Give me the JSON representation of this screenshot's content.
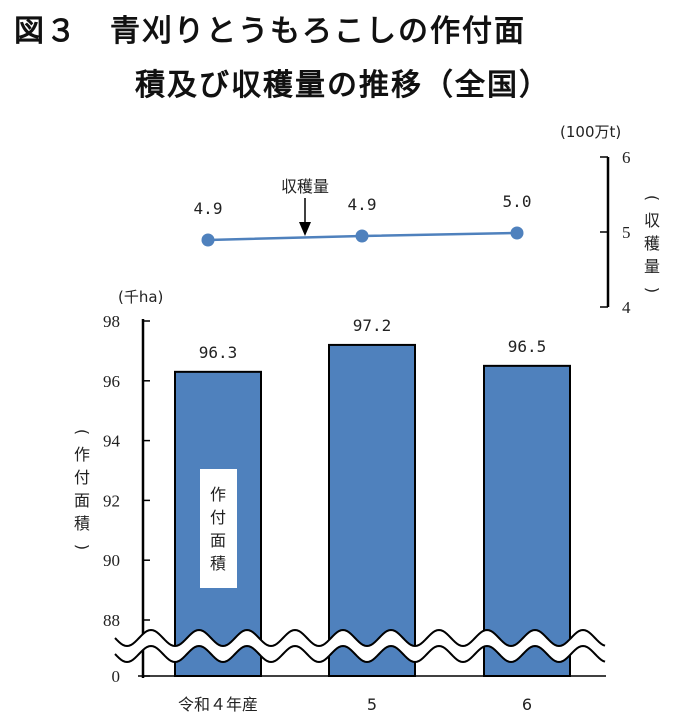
{
  "title": {
    "line1": "図３　青刈りとうもろこしの作付面",
    "line2": "積及び収穫量の推移（全国）"
  },
  "chart_data": {
    "type": "bar",
    "categories": [
      "令和４年産",
      "5",
      "6"
    ],
    "series": [
      {
        "name": "作付面積",
        "type": "bar",
        "unit": "(千ha)",
        "values": [
          96.3,
          97.2,
          96.5
        ],
        "data_labels": [
          "96.3",
          "97.2",
          "96.5"
        ],
        "color": "#4f81bd"
      },
      {
        "name": "収穫量",
        "type": "line",
        "unit": "(100万t)",
        "values": [
          4.9,
          4.9,
          5.0
        ],
        "data_labels": [
          "4.9",
          "4.9",
          "5.0"
        ],
        "color": "#4f81bd"
      }
    ],
    "left_axis": {
      "label": "(作付面積)",
      "unit": "(千ha)",
      "ticks": [
        "98",
        "96",
        "94",
        "92",
        "90",
        "88",
        "0"
      ],
      "range": [
        88,
        98
      ],
      "broken": true
    },
    "right_axis": {
      "label": "(収穫量)",
      "unit": "(100万t)",
      "ticks": [
        "6",
        "5",
        "4"
      ],
      "range": [
        4,
        6
      ]
    },
    "annotations": {
      "line_callout": "収穫量",
      "bar_box_label": "作付面積"
    },
    "grid": false
  }
}
